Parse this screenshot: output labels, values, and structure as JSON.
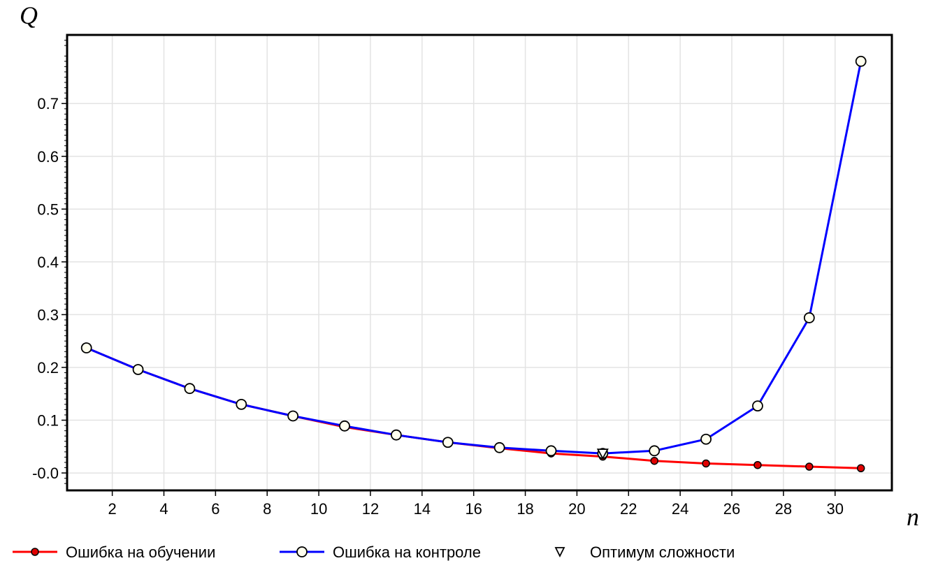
{
  "chart_data": {
    "type": "line",
    "title": "",
    "xlabel": "n",
    "ylabel": "Q",
    "xlim": [
      0.25,
      32.2
    ],
    "ylim": [
      -0.033,
      0.83
    ],
    "xticks": [
      2,
      4,
      6,
      8,
      10,
      12,
      14,
      16,
      18,
      20,
      22,
      24,
      26,
      28,
      30
    ],
    "xtick_labels": [
      "2",
      "4",
      "6",
      "8",
      "10",
      "12",
      "14",
      "16",
      "18",
      "20",
      "22",
      "24",
      "26",
      "28",
      "30"
    ],
    "yticks": [
      0.0,
      0.1,
      0.2,
      0.3,
      0.4,
      0.5,
      0.6,
      0.7
    ],
    "ytick_labels": [
      "-0.0",
      "0.1",
      "0.2",
      "0.3",
      "0.4",
      "0.5",
      "0.6",
      "0.7"
    ],
    "grid": true,
    "legend_position": "bottom",
    "x": [
      1,
      3,
      5,
      7,
      9,
      11,
      13,
      15,
      17,
      19,
      21,
      23,
      25,
      27,
      29,
      31
    ],
    "series": [
      {
        "name": "Ошибка на обучении",
        "color": "#ff0000",
        "marker": "filled-dot",
        "marker_color": "#e00000",
        "values": [
          0.237,
          0.196,
          0.16,
          0.13,
          0.108,
          0.087,
          0.072,
          0.058,
          0.047,
          0.037,
          0.031,
          0.023,
          0.018,
          0.015,
          0.012,
          0.009
        ]
      },
      {
        "name": "Ошибка на контроле",
        "color": "#0000ff",
        "marker": "open-circle",
        "marker_color": "#ffffee",
        "values": [
          0.237,
          0.196,
          0.16,
          0.13,
          0.108,
          0.089,
          0.072,
          0.058,
          0.048,
          0.042,
          0.037,
          0.042,
          0.064,
          0.127,
          0.294,
          0.78
        ]
      }
    ],
    "optimum": {
      "name": "Оптимум сложности",
      "x": 21,
      "y": 0.037,
      "marker": "open-triangle-down"
    }
  }
}
